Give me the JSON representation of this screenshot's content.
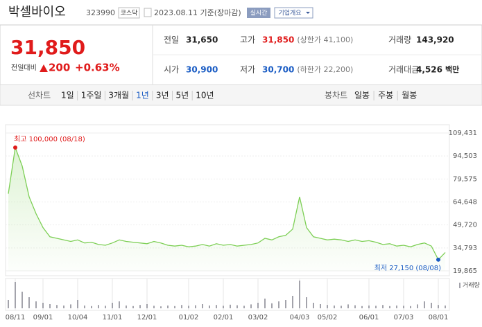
{
  "header": {
    "title": "박셀바이오",
    "code": "323990",
    "market": "코스닥",
    "date": "2023.08.11 기준(장마감)",
    "realtime": "실시간",
    "company": "기업개요"
  },
  "price": {
    "current": "31,850",
    "change_label": "전일대비",
    "change": "200",
    "change_pct": "+0.63%"
  },
  "quote": [
    {
      "label": "전일",
      "value": "31,650"
    },
    {
      "label": "고가",
      "value": "31,850",
      "note": "(상한가 41,100)"
    },
    {
      "label": "거래량",
      "value": "143,920"
    },
    {
      "label": "시가",
      "value": "30,900"
    },
    {
      "label": "저가",
      "value": "30,700",
      "note": "(하한가 22,200)"
    },
    {
      "label": "거래대금",
      "value": "4,526",
      "unit": "백만"
    }
  ],
  "tabs": {
    "line_label": "선차트",
    "line": [
      "1일",
      "1주일",
      "3개월",
      "1년",
      "3년",
      "5년",
      "10년"
    ],
    "selected": 3,
    "candle_label": "봉차트",
    "candle": [
      "일봉",
      "주봉",
      "월봉"
    ]
  },
  "chart_data": {
    "type": "line",
    "color": "#7dcf55",
    "xticks": [
      {
        "value": 1,
        "label": "08/11"
      },
      {
        "value": 5,
        "label": "09/01"
      },
      {
        "value": 10,
        "label": "10/04"
      },
      {
        "value": 15,
        "label": "11/01"
      },
      {
        "value": 20,
        "label": "12/01"
      },
      {
        "value": 26,
        "label": "01/02"
      },
      {
        "value": 31,
        "label": "02/01"
      },
      {
        "value": 36,
        "label": "03/02"
      },
      {
        "value": 42,
        "label": "04/03"
      },
      {
        "value": 46,
        "label": "05/02"
      },
      {
        "value": 52,
        "label": "06/01"
      },
      {
        "value": 57,
        "label": "07/03"
      },
      {
        "value": 62,
        "label": "08/01"
      }
    ],
    "xlim": [
      0,
      63
    ],
    "ylim": [
      19865,
      109431
    ],
    "yticks": [
      {
        "value": 109431,
        "label": "109,431"
      },
      {
        "value": 94503,
        "label": "94,503"
      },
      {
        "value": 79575,
        "label": "79,575"
      },
      {
        "value": 64648,
        "label": "64,648"
      },
      {
        "value": 49720,
        "label": "49,720"
      },
      {
        "value": 34793,
        "label": "34,793"
      },
      {
        "value": 19865,
        "label": "19,865"
      }
    ],
    "values": [
      70000,
      100000,
      88000,
      68000,
      57000,
      48000,
      42000,
      41000,
      40000,
      39000,
      40000,
      38000,
      38500,
      37000,
      36500,
      38000,
      40000,
      39000,
      38500,
      38000,
      37500,
      39000,
      38000,
      36500,
      36000,
      36500,
      35500,
      36000,
      37000,
      36000,
      37500,
      36500,
      37000,
      36000,
      36500,
      37000,
      38000,
      41000,
      40000,
      42000,
      43000,
      47000,
      68000,
      48000,
      42000,
      41000,
      40000,
      40500,
      40000,
      39000,
      40000,
      39000,
      39500,
      38500,
      37000,
      37500,
      36000,
      36500,
      35500,
      37000,
      38000,
      36000,
      27150,
      31850
    ],
    "max_label": "최고 100,000 (08/18)",
    "max_index": 1,
    "min_label": "최저 27,150 (08/08)",
    "min_index": 62,
    "volume_label": "거래량",
    "volume_color": "#a3a3ab",
    "volume": [
      30,
      95,
      60,
      40,
      25,
      20,
      15,
      12,
      10,
      14,
      30,
      10,
      8,
      12,
      9,
      20,
      25,
      10,
      8,
      12,
      15,
      9,
      7,
      10,
      8,
      12,
      9,
      11,
      15,
      10,
      12,
      9,
      13,
      11,
      9,
      14,
      20,
      35,
      18,
      25,
      30,
      45,
      100,
      40,
      20,
      15,
      12,
      10,
      9,
      14,
      11,
      8,
      10,
      9,
      12,
      8,
      10,
      9,
      8,
      14,
      25,
      20,
      12,
      10
    ]
  }
}
